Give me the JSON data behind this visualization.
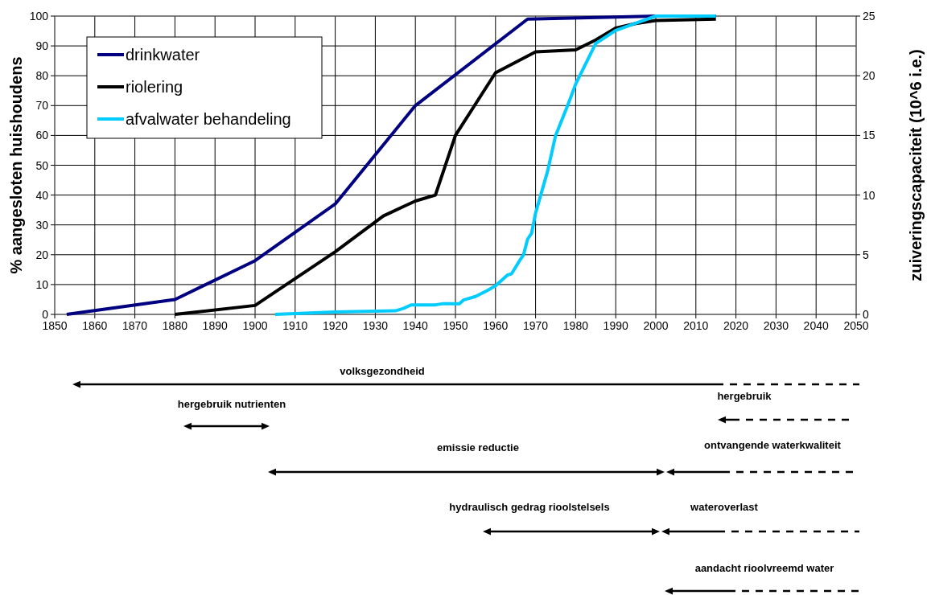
{
  "chart_data": {
    "type": "line",
    "ylabel": "% aangesloten huishoudens",
    "y2label": "zuiveringscapaciteit (10^6 i.e.)",
    "xlim": [
      1850,
      2050
    ],
    "xticks": [
      1850,
      1860,
      1870,
      1880,
      1890,
      1900,
      1910,
      1920,
      1930,
      1940,
      1950,
      1960,
      1970,
      1980,
      1990,
      2000,
      2010,
      2020,
      2030,
      2040,
      2050
    ],
    "ylim": [
      0,
      100
    ],
    "yticks": [
      0,
      10,
      20,
      30,
      40,
      50,
      60,
      70,
      80,
      90,
      100
    ],
    "y2lim": [
      0,
      25
    ],
    "y2ticks": [
      0,
      5,
      10,
      15,
      20,
      25
    ],
    "grid": true,
    "legend": "top left",
    "series": [
      {
        "name": "drinkwater",
        "color": "#000080",
        "x": [
          1853,
          1880,
          1900,
          1920,
          1940,
          1968,
          2000,
          2015
        ],
        "values": [
          0,
          5,
          18,
          37,
          70,
          99,
          100,
          100
        ]
      },
      {
        "name": "riolering",
        "color": "#000000",
        "x": [
          1880,
          1900,
          1920,
          1932,
          1940,
          1945,
          1950,
          1960,
          1970,
          1980,
          1985,
          1990,
          1995,
          2000,
          2015
        ],
        "values": [
          0,
          3,
          21,
          33,
          38,
          40,
          60,
          81,
          88,
          88.7,
          92,
          96,
          97.5,
          98.5,
          99
        ]
      },
      {
        "name": "afvalwater behandeling",
        "color": "#00ccff",
        "axis": "y2",
        "x": [
          1905,
          1920,
          1935,
          1937,
          1939,
          1945,
          1947,
          1951,
          1952,
          1955,
          1958,
          1960,
          1962,
          1963,
          1964,
          1966,
          1967,
          1968,
          1969,
          1970,
          1973,
          1975,
          1978,
          1980,
          1985,
          1990,
          1995,
          2000,
          2015
        ],
        "values": [
          0,
          0.2,
          0.3,
          0.5,
          0.8,
          0.8,
          0.9,
          0.9,
          1.2,
          1.5,
          2,
          2.4,
          3,
          3.3,
          3.4,
          4.5,
          5,
          6.3,
          6.8,
          8.5,
          12,
          15,
          17.5,
          19.3,
          22.7,
          23.8,
          24.4,
          25,
          25
        ]
      }
    ],
    "annotations": [
      "volksgezondheid",
      "hergebruik nutrienten",
      "hergebruik",
      "emissie reductie",
      "ontvangende waterkwaliteit",
      "hydraulisch gedrag rioolstelsels",
      "wateroverlast",
      "aandacht rioolvreemd water"
    ]
  }
}
